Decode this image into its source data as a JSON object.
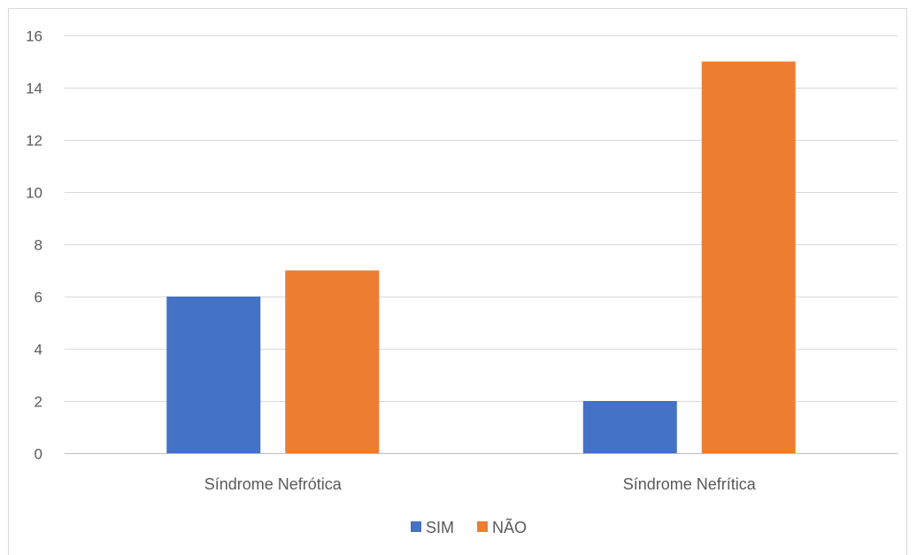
{
  "chart_data": {
    "type": "bar",
    "categories": [
      "Síndrome Nefrótica",
      "Síndrome Nefrítica"
    ],
    "series": [
      {
        "name": "SIM",
        "values": [
          6,
          2
        ],
        "color": "#4472C4"
      },
      {
        "name": "NÃO",
        "values": [
          7,
          15
        ],
        "color": "#ED7D31"
      }
    ],
    "ylim": [
      0,
      16
    ],
    "yticks": [
      0,
      2,
      4,
      6,
      8,
      10,
      12,
      14,
      16
    ],
    "grid": true,
    "legend": "bottom",
    "gridColor": "#d9d9d9",
    "axisColor": "#bfbfbf"
  }
}
